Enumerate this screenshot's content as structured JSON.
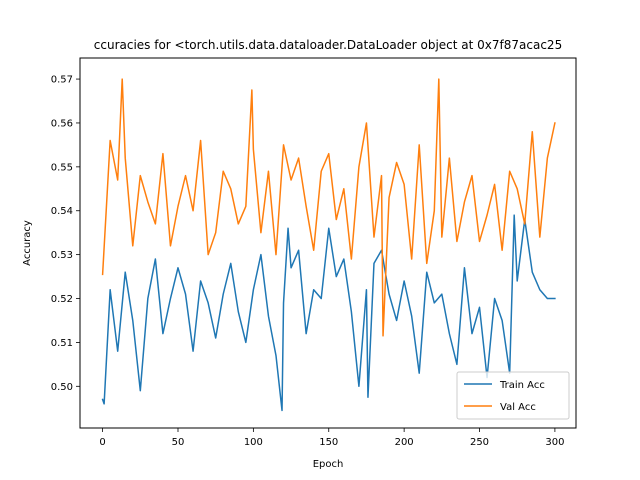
{
  "chart_data": {
    "type": "line",
    "title": "ccuracies for <torch.utils.data.dataloader.DataLoader object at 0x7f87acac25",
    "xlabel": "Epoch",
    "ylabel": "Accuracy",
    "xlim": [
      -15,
      314
    ],
    "ylim": [
      0.4905,
      0.5748
    ],
    "x_ticks": [
      0,
      50,
      100,
      150,
      200,
      250,
      300
    ],
    "y_ticks": [
      0.5,
      0.51,
      0.52,
      0.53,
      0.54,
      0.55,
      0.56,
      0.57
    ],
    "x_tick_labels": [
      "0",
      "50",
      "100",
      "150",
      "200",
      "250",
      "300"
    ],
    "y_tick_labels": [
      "0.50",
      "0.51",
      "0.52",
      "0.53",
      "0.54",
      "0.55",
      "0.56",
      "0.57"
    ],
    "grid": false,
    "legend_position": "lower-right",
    "x": {
      "start": 0,
      "step": 5
    },
    "series": [
      {
        "name": "Train Acc",
        "color": "#1f77b4",
        "values": [
          0.497,
          0.522,
          0.508,
          0.526,
          0.515,
          0.499,
          0.52,
          0.529,
          0.512,
          0.52,
          0.527,
          0.521,
          0.508,
          0.524,
          0.519,
          0.511,
          0.521,
          0.528,
          0.517,
          0.51,
          0.522,
          0.53,
          0.516,
          0.507,
          0.519,
          0.527,
          0.531,
          0.512,
          0.522,
          0.52,
          0.536,
          0.525,
          0.529,
          0.517,
          0.5,
          0.522,
          0.528,
          0.531,
          0.521,
          0.515,
          0.524,
          0.516,
          0.503,
          0.526,
          0.519,
          0.521,
          0.512,
          0.505,
          0.527,
          0.512,
          0.518,
          0.502,
          0.52,
          0.515,
          0.503,
          0.524,
          0.538,
          0.526,
          0.522,
          0.52,
          0.52
        ]
      },
      {
        "name": "Val Acc",
        "color": "#ff7f0e",
        "values": [
          0.5255,
          0.556,
          0.547,
          0.552,
          0.532,
          0.548,
          0.542,
          0.537,
          0.553,
          0.532,
          0.541,
          0.548,
          0.54,
          0.556,
          0.53,
          0.535,
          0.549,
          0.545,
          0.537,
          0.541,
          0.554,
          0.535,
          0.549,
          0.53,
          0.555,
          0.547,
          0.552,
          0.541,
          0.531,
          0.549,
          0.553,
          0.538,
          0.545,
          0.529,
          0.55,
          0.56,
          0.534,
          0.548,
          0.543,
          0.551,
          0.546,
          0.529,
          0.555,
          0.528,
          0.54,
          0.534,
          0.552,
          0.533,
          0.542,
          0.548,
          0.533,
          0.539,
          0.546,
          0.531,
          0.549,
          0.545,
          0.537,
          0.558,
          0.534,
          0.552,
          0.56
        ]
      }
    ],
    "annotation_points": [
      {
        "series": 0,
        "x": 1,
        "y": 0.496
      },
      {
        "series": 0,
        "x": 119,
        "y": 0.4945
      },
      {
        "series": 0,
        "x": 123,
        "y": 0.536
      },
      {
        "series": 0,
        "x": 176,
        "y": 0.4975
      },
      {
        "series": 0,
        "x": 273,
        "y": 0.539
      },
      {
        "series": 1,
        "x": 13,
        "y": 0.57
      },
      {
        "series": 1,
        "x": 99,
        "y": 0.5675
      },
      {
        "series": 1,
        "x": 223,
        "y": 0.57
      },
      {
        "series": 1,
        "x": 186,
        "y": 0.5115
      }
    ]
  }
}
